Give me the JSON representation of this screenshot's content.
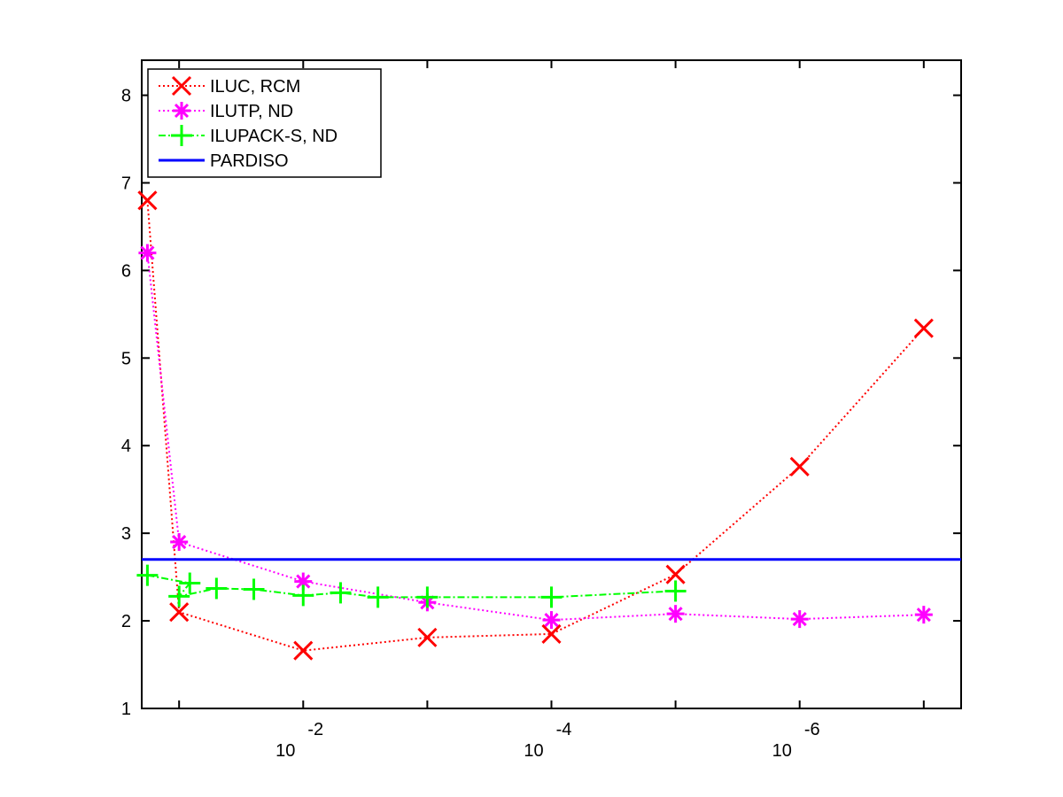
{
  "chart_data": {
    "type": "line",
    "x_scale": "log",
    "x_reversed": true,
    "xlim": [
      0.2,
      5e-08
    ],
    "ylim": [
      1,
      8.4
    ],
    "y_ticks": [
      1,
      2,
      3,
      4,
      5,
      6,
      7,
      8
    ],
    "y_tick_labels": [
      "1",
      "2",
      "3",
      "4",
      "5",
      "6",
      "7",
      "8"
    ],
    "x_ticks": [
      {
        "value": 0.01,
        "base": "10",
        "exp": "-2"
      },
      {
        "value": 0.0001,
        "base": "10",
        "exp": "-4"
      },
      {
        "value": 1e-06,
        "base": "10",
        "exp": "-6"
      }
    ],
    "x_minor_ticks": [
      0.1,
      0.001,
      1e-05,
      1e-07
    ],
    "grid": false,
    "legend_position": "top-left",
    "series": [
      {
        "name": "ILUC, RCM",
        "color": "#ff0000",
        "marker": "x",
        "line_style": "dotted",
        "x": [
          0.18,
          0.1,
          0.01,
          0.001,
          0.0001,
          1e-05,
          1e-06,
          1e-07
        ],
        "y": [
          6.8,
          2.1,
          1.66,
          1.81,
          1.85,
          2.53,
          3.76,
          5.34
        ]
      },
      {
        "name": "ILUTP,  ND",
        "color": "#ff00ff",
        "marker": "asterisk",
        "line_style": "dotted",
        "x": [
          0.18,
          0.1,
          0.01,
          0.001,
          0.0001,
          1e-05,
          1e-06,
          1e-07
        ],
        "y": [
          6.2,
          2.9,
          2.45,
          2.21,
          2.01,
          2.08,
          2.02,
          2.07
        ]
      },
      {
        "name": "ILUPACK-S, ND",
        "color": "#00ff00",
        "marker": "plus",
        "line_style": "dashdot",
        "x": [
          0.18,
          0.082,
          0.1,
          0.05,
          0.025,
          0.01,
          0.005,
          0.0025,
          0.001,
          0.0001,
          1e-05
        ],
        "y": [
          2.52,
          2.43,
          2.28,
          2.37,
          2.36,
          2.29,
          2.32,
          2.27,
          2.27,
          2.27,
          2.34
        ]
      },
      {
        "name": "PARDISO",
        "color": "#0000ff",
        "marker": "none",
        "line_style": "solid",
        "x": [
          0.2,
          5e-08
        ],
        "y": [
          2.7,
          2.7
        ]
      }
    ]
  }
}
